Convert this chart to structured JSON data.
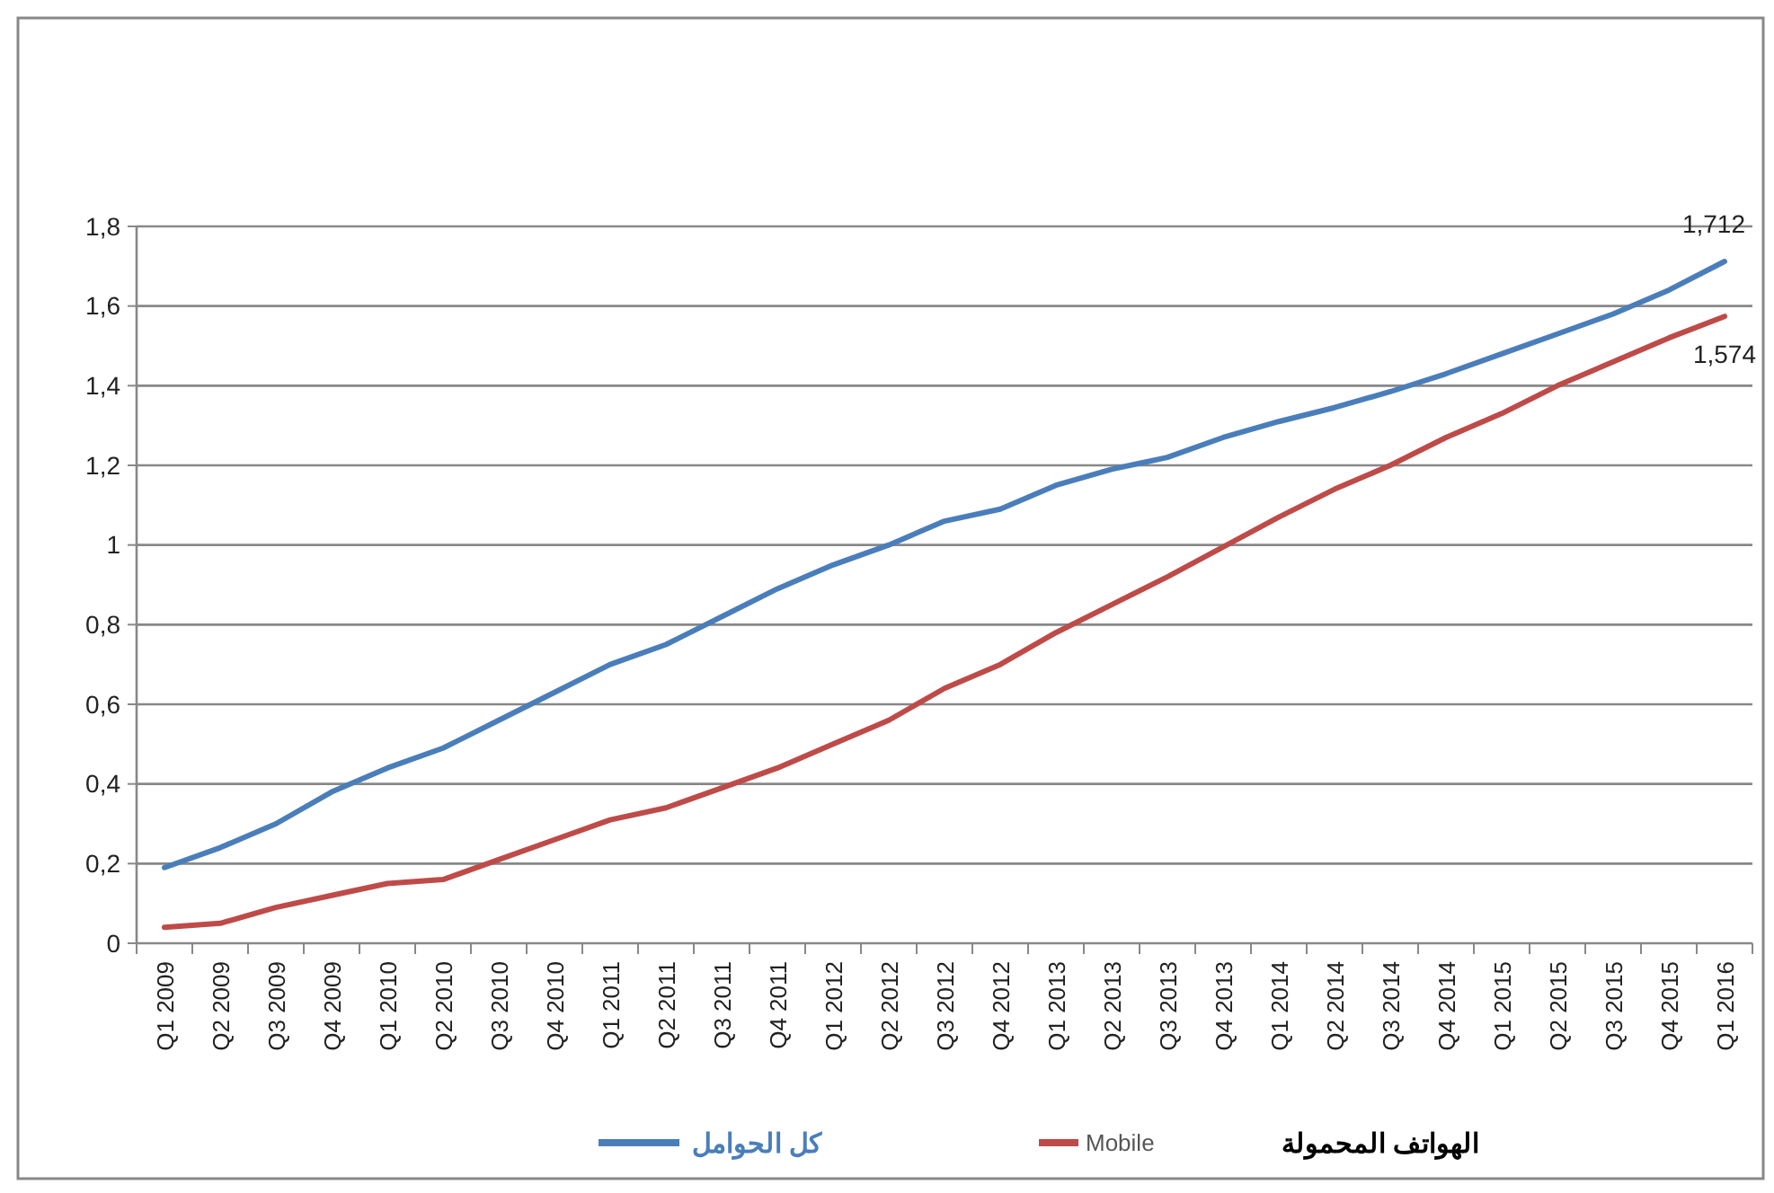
{
  "chart_data": {
    "type": "line",
    "categories": [
      "Q1 2009",
      "Q2 2009",
      "Q3 2009",
      "Q4 2009",
      "Q1 2010",
      "Q2 2010",
      "Q3 2010",
      "Q4 2010",
      "Q1 2011",
      "Q2 2011",
      "Q3 2011",
      "Q4 2011",
      "Q1 2012",
      "Q2 2012",
      "Q3 2012",
      "Q4 2012",
      "Q1 2013",
      "Q2 2013",
      "Q3 2013",
      "Q4 2013",
      "Q1 2014",
      "Q2 2014",
      "Q3 2014",
      "Q4 2014",
      "Q1 2015",
      "Q2 2015",
      "Q3 2015",
      "Q4 2015",
      "Q1 2016"
    ],
    "series": [
      {
        "name": "كل الحوامل",
        "color": "#4a7ebb",
        "values": [
          0.19,
          0.24,
          0.3,
          0.38,
          0.44,
          0.49,
          0.56,
          0.63,
          0.7,
          0.75,
          0.82,
          0.89,
          0.95,
          1.0,
          1.06,
          1.09,
          1.15,
          1.19,
          1.22,
          1.27,
          1.31,
          1.345,
          1.385,
          1.43,
          1.48,
          1.53,
          1.58,
          1.64,
          1.712
        ]
      },
      {
        "name": "Mobile",
        "color": "#be4b48",
        "values": [
          0.04,
          0.05,
          0.09,
          0.12,
          0.15,
          0.16,
          0.21,
          0.26,
          0.31,
          0.34,
          0.39,
          0.44,
          0.5,
          0.56,
          0.64,
          0.7,
          0.78,
          0.85,
          0.92,
          0.995,
          1.07,
          1.14,
          1.2,
          1.27,
          1.33,
          1.4,
          1.46,
          1.52,
          1.574
        ]
      }
    ],
    "ylim": [
      0,
      1.8
    ],
    "yticks": [
      0,
      {
        "value": 0.2,
        "label": "0,2"
      },
      {
        "value": 0.4,
        "label": "0,4"
      },
      {
        "value": 0.6,
        "label": "0,6"
      },
      {
        "value": 0.8,
        "label": "0,8"
      },
      1,
      {
        "value": 1.2,
        "label": "1,2"
      },
      {
        "value": 1.4,
        "label": "1,4"
      },
      {
        "value": 1.6,
        "label": "1,6"
      },
      {
        "value": 1.8,
        "label": "1,8"
      }
    ],
    "grid": "y",
    "legend": "bottom",
    "marker": "none",
    "line_style": "solid",
    "annotations": [
      {
        "text": "1,712",
        "x": "Q1 2016",
        "y": 1.712
      },
      {
        "text": "1,574",
        "x": "Q1 2016",
        "y": 1.574
      },
      "الهواتف المحمولة"
    ]
  }
}
